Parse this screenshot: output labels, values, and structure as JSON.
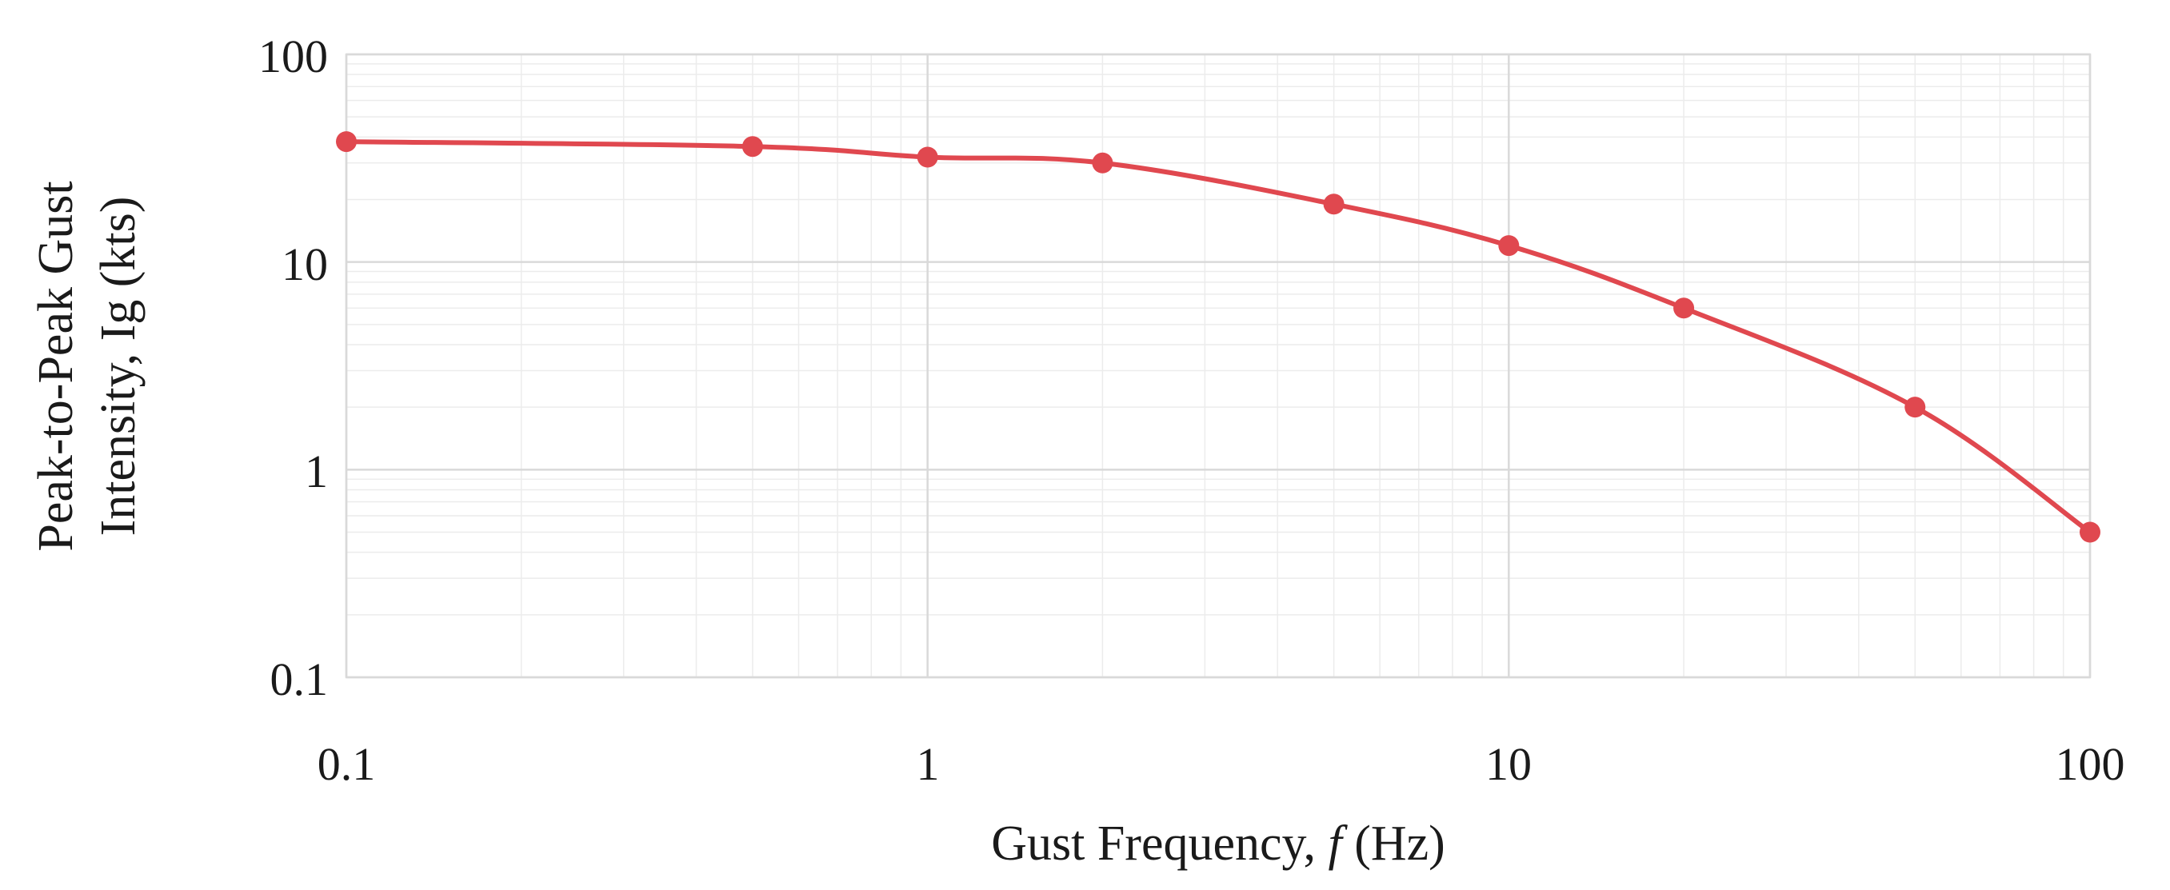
{
  "chart_data": {
    "type": "line",
    "x_scale": "log",
    "y_scale": "log",
    "xlim": [
      0.1,
      100
    ],
    "ylim": [
      0.1,
      100
    ],
    "grid": true,
    "x_ticks": [
      "0.1",
      "1",
      "10",
      "100"
    ],
    "y_ticks": [
      "100",
      "10",
      "1",
      "0.1"
    ],
    "xlabel": {
      "prefix": "Gust Frequency, ",
      "symbol": "f",
      "suffix": " (Hz)"
    },
    "ylabel": {
      "line1": "Peak-to-Peak Gust",
      "line2": "Intensity, Ig (kts)"
    },
    "series": [
      {
        "color": "#e0484f",
        "x": [
          0.1,
          0.5,
          1,
          2,
          5,
          10,
          20,
          50,
          100
        ],
        "y": [
          38,
          36,
          32,
          30,
          19,
          12,
          6,
          2,
          0.5
        ]
      }
    ]
  }
}
